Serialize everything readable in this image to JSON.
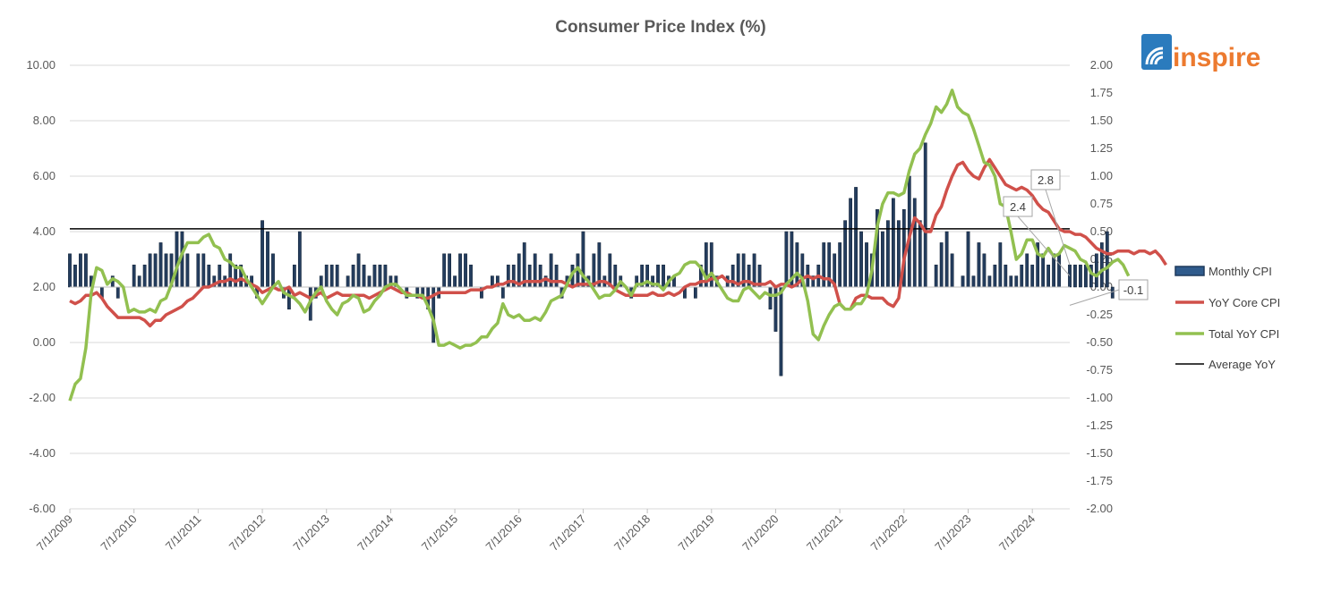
{
  "logo": {
    "text": "inspire",
    "icon": "wifi-arc-icon",
    "icon_color": "#2b7bbd",
    "text_color": "#ec7a2f"
  },
  "chart_data": {
    "type": "bar+line",
    "title": "Consumer Price Index (%)",
    "y_left": {
      "ylim": [
        -6,
        10
      ],
      "ticks": [
        "10.00",
        "8.00",
        "6.00",
        "4.00",
        "2.00",
        "0.00",
        "-2.00",
        "-4.00",
        "-6.00"
      ]
    },
    "y_right": {
      "ylim": [
        -2,
        2
      ],
      "ticks": [
        "2.00",
        "1.75",
        "1.50",
        "1.25",
        "1.00",
        "0.75",
        "0.50",
        "0.25",
        "0.00",
        "-0.25",
        "-0.50",
        "-0.75",
        "-1.00",
        "-1.25",
        "-1.50",
        "-1.75",
        "-2.00"
      ]
    },
    "x_ticks": [
      "7/1/2009",
      "7/1/2010",
      "7/1/2011",
      "7/1/2012",
      "7/1/2013",
      "7/1/2014",
      "7/1/2015",
      "7/1/2016",
      "7/1/2017",
      "7/1/2018",
      "7/1/2019",
      "7/1/2020",
      "7/1/2021",
      "7/1/2022",
      "7/1/2023",
      "7/1/2024"
    ],
    "x_range": [
      "2009-07",
      "2025-02"
    ],
    "grid": "horizontal",
    "legend_position": "right",
    "legend": [
      {
        "name": "Monthly CPI",
        "type": "bar",
        "color": "#1f3a5c"
      },
      {
        "name": "YoY Core CPI",
        "type": "line",
        "color": "#d0504a"
      },
      {
        "name": "Total YoY CPI",
        "type": "line",
        "color": "#92c050"
      },
      {
        "name": "Average YoY",
        "type": "line",
        "color": "#000000"
      }
    ],
    "average_yoy": 4.1,
    "callouts": [
      {
        "label": "2.8",
        "series": "YoY Core CPI",
        "date": "2025-02"
      },
      {
        "label": "2.4",
        "series": "Total YoY CPI",
        "date": "2025-02"
      },
      {
        "label": "-0.1",
        "series": "Monthly CPI",
        "date": "2025-02"
      }
    ],
    "monthly_cpi": {
      "axis": "right",
      "start": "2009-07",
      "values": [
        0.3,
        0.2,
        0.3,
        0.3,
        0.1,
        0,
        -0.1,
        0,
        0.1,
        -0.1,
        0,
        0,
        0.2,
        0.1,
        0.2,
        0.3,
        0.3,
        0.4,
        0.3,
        0.3,
        0.5,
        0.5,
        0.3,
        0,
        0.3,
        0.3,
        0.2,
        0.1,
        0.2,
        0.1,
        0.3,
        0.2,
        0.2,
        0.1,
        0.1,
        -0.1,
        0.6,
        0.5,
        0.3,
        0,
        -0.1,
        -0.2,
        0.2,
        0.5,
        0,
        -0.3,
        -0.1,
        0.1,
        0.2,
        0.2,
        0.2,
        0,
        0.1,
        0.2,
        0.3,
        0.2,
        0.1,
        0.2,
        0.2,
        0.2,
        0.1,
        0.1,
        0,
        -0.1,
        0,
        -0.1,
        -0.1,
        -0.2,
        -0.5,
        -0.1,
        0.3,
        0.3,
        0.1,
        0.3,
        0.3,
        0.2,
        0,
        -0.1,
        0,
        0.1,
        0.1,
        -0.1,
        0.2,
        0.2,
        0.3,
        0.4,
        0.2,
        0.3,
        0.2,
        0.1,
        0.3,
        0.2,
        -0.1,
        0.1,
        0.2,
        0.3,
        0.5,
        0.1,
        0.3,
        0.4,
        0.1,
        0.3,
        0.2,
        0.1,
        0,
        -0.1,
        0.1,
        0.2,
        0.2,
        0.1,
        0.2,
        0.2,
        0.1,
        0.1,
        0,
        -0.1,
        0,
        -0.1,
        0.2,
        0.4,
        0.4,
        0.1,
        0,
        0.1,
        0.2,
        0.3,
        0.3,
        0.2,
        0.3,
        0.2,
        0,
        -0.2,
        -0.4,
        -0.8,
        0.5,
        0.5,
        0.4,
        0.3,
        0.2,
        0.1,
        0.2,
        0.4,
        0.4,
        0.3,
        0.4,
        0.6,
        0.8,
        0.9,
        0.5,
        0.4,
        0.3,
        0.7,
        0.5,
        0.6,
        0.8,
        0.6,
        0.7,
        1,
        0.8,
        0.6,
        1.3,
        0,
        0.2,
        0.4,
        0.5,
        0.3,
        0,
        0.1,
        0.5,
        0.1,
        0.4,
        0.3,
        0.1,
        0.2,
        0.4,
        0.2,
        0.1,
        0.1,
        0.2,
        0.3,
        0.2,
        0.4,
        0.3,
        0.2,
        0.3,
        0.3,
        0,
        0.2,
        0.2,
        0.2,
        0.2,
        0.2,
        0.3,
        0.4,
        0.5,
        -0.1
      ]
    },
    "yoy_core_cpi": {
      "axis": "left",
      "start": "2009-07",
      "values": [
        1.5,
        1.4,
        1.5,
        1.7,
        1.7,
        1.8,
        1.6,
        1.3,
        1.1,
        0.9,
        0.9,
        0.9,
        0.9,
        0.9,
        0.8,
        0.6,
        0.8,
        0.8,
        1,
        1.1,
        1.2,
        1.3,
        1.5,
        1.6,
        1.8,
        2,
        2,
        2.1,
        2.2,
        2.2,
        2.3,
        2.2,
        2.3,
        2.2,
        2.1,
        2,
        1.8,
        1.9,
        2,
        1.9,
        1.9,
        2,
        1.7,
        1.8,
        1.7,
        1.6,
        1.7,
        1.8,
        1.6,
        1.7,
        1.8,
        1.7,
        1.7,
        1.7,
        1.7,
        1.7,
        1.6,
        1.7,
        1.8,
        1.9,
        2,
        1.9,
        1.8,
        1.8,
        1.7,
        1.7,
        1.6,
        1.6,
        1.7,
        1.8,
        1.8,
        1.8,
        1.8,
        1.8,
        1.8,
        1.9,
        1.9,
        1.9,
        2,
        2,
        2.1,
        2.1,
        2.2,
        2.2,
        2.1,
        2.2,
        2.2,
        2.2,
        2.2,
        2.3,
        2.2,
        2.2,
        2.2,
        2.1,
        2,
        2.1,
        2.1,
        2.1,
        2.1,
        2.2,
        2.2,
        2.1,
        1.9,
        1.8,
        1.7,
        1.7,
        1.7,
        1.7,
        1.7,
        1.8,
        1.7,
        1.7,
        1.8,
        1.7,
        1.8,
        2,
        2.1,
        2.1,
        2.2,
        2.2,
        2.3,
        2.3,
        2.4,
        2.2,
        2.2,
        2.1,
        2.2,
        2.2,
        2.1,
        2.1,
        2.1,
        2.2,
        2,
        2.1,
        2.1,
        2,
        2.1,
        2.3,
        2.4,
        2.3,
        2.4,
        2.3,
        2.3,
        2.1,
        1.4,
        1.2,
        1.2,
        1.6,
        1.7,
        1.7,
        1.6,
        1.6,
        1.6,
        1.4,
        1.3,
        1.6,
        3,
        3.8,
        4.5,
        4.3,
        4,
        4,
        4.6,
        4.9,
        5.5,
        6,
        6.4,
        6.5,
        6.2,
        6,
        5.9,
        6.3,
        6.6,
        6.3,
        6,
        5.7,
        5.6,
        5.5,
        5.6,
        5.5,
        5.3,
        5,
        4.8,
        4.7,
        4.4,
        4.1,
        4,
        4,
        3.9,
        3.9,
        3.8,
        3.6,
        3.4,
        3.3,
        3.2,
        3.2,
        3.3,
        3.3,
        3.3,
        3.2,
        3.3,
        3.3,
        3.2,
        3.3,
        3.1,
        2.8
      ]
    },
    "total_yoy_cpi": {
      "axis": "left",
      "start": "2009-07",
      "values": [
        -2.1,
        -1.5,
        -1.3,
        -0.2,
        1.8,
        2.7,
        2.6,
        2.1,
        2.3,
        2.2,
        2,
        1.1,
        1.2,
        1.1,
        1.1,
        1.2,
        1.1,
        1.5,
        1.6,
        2.1,
        2.7,
        3.2,
        3.6,
        3.6,
        3.6,
        3.8,
        3.9,
        3.5,
        3.4,
        3,
        2.9,
        2.7,
        2.7,
        2.3,
        2,
        1.7,
        1.4,
        1.7,
        2,
        2.2,
        1.8,
        1.7,
        1.6,
        1.4,
        1.1,
        1.5,
        1.8,
        2,
        1.5,
        1.2,
        1,
        1.4,
        1.5,
        1.7,
        1.6,
        1.1,
        1.2,
        1.5,
        1.7,
        2,
        2.1,
        2.1,
        1.9,
        1.7,
        1.7,
        1.7,
        1.7,
        1.3,
        0.8,
        -0.1,
        -0.1,
        0,
        -0.1,
        -0.2,
        -0.1,
        -0.1,
        0,
        0.2,
        0.2,
        0.5,
        0.7,
        1.4,
        1,
        0.9,
        1,
        0.8,
        0.8,
        0.9,
        0.8,
        1.1,
        1.5,
        1.6,
        1.7,
        2.1,
        2.5,
        2.7,
        2.4,
        2.2,
        1.9,
        1.6,
        1.7,
        1.7,
        1.9,
        2.2,
        2,
        1.7,
        2.1,
        2.1,
        2.2,
        2.1,
        2.1,
        1.9,
        2.2,
        2.4,
        2.5,
        2.8,
        2.9,
        2.9,
        2.7,
        2.3,
        2.5,
        2.2,
        1.9,
        1.6,
        1.5,
        1.5,
        1.9,
        2,
        1.8,
        1.6,
        1.8,
        1.7,
        1.7,
        1.8,
        2.1,
        2.3,
        2.5,
        2.3,
        1.5,
        0.3,
        0.1,
        0.6,
        1,
        1.3,
        1.4,
        1.2,
        1.2,
        1.4,
        1.4,
        1.7,
        2.6,
        4.2,
        5,
        5.4,
        5.4,
        5.3,
        5.4,
        6.2,
        6.8,
        7,
        7.5,
        7.9,
        8.5,
        8.3,
        8.6,
        9.1,
        8.5,
        8.3,
        8.2,
        7.7,
        7.1,
        6.5,
        6.4,
        6,
        5,
        4.9,
        4,
        3,
        3.2,
        3.7,
        3.7,
        3.2,
        3.1,
        3.4,
        3.1,
        3.2,
        3.5,
        3.4,
        3.3,
        3,
        2.9,
        2.5,
        2.4,
        2.6,
        2.7,
        2.9,
        3,
        2.8,
        2.4
      ]
    }
  }
}
